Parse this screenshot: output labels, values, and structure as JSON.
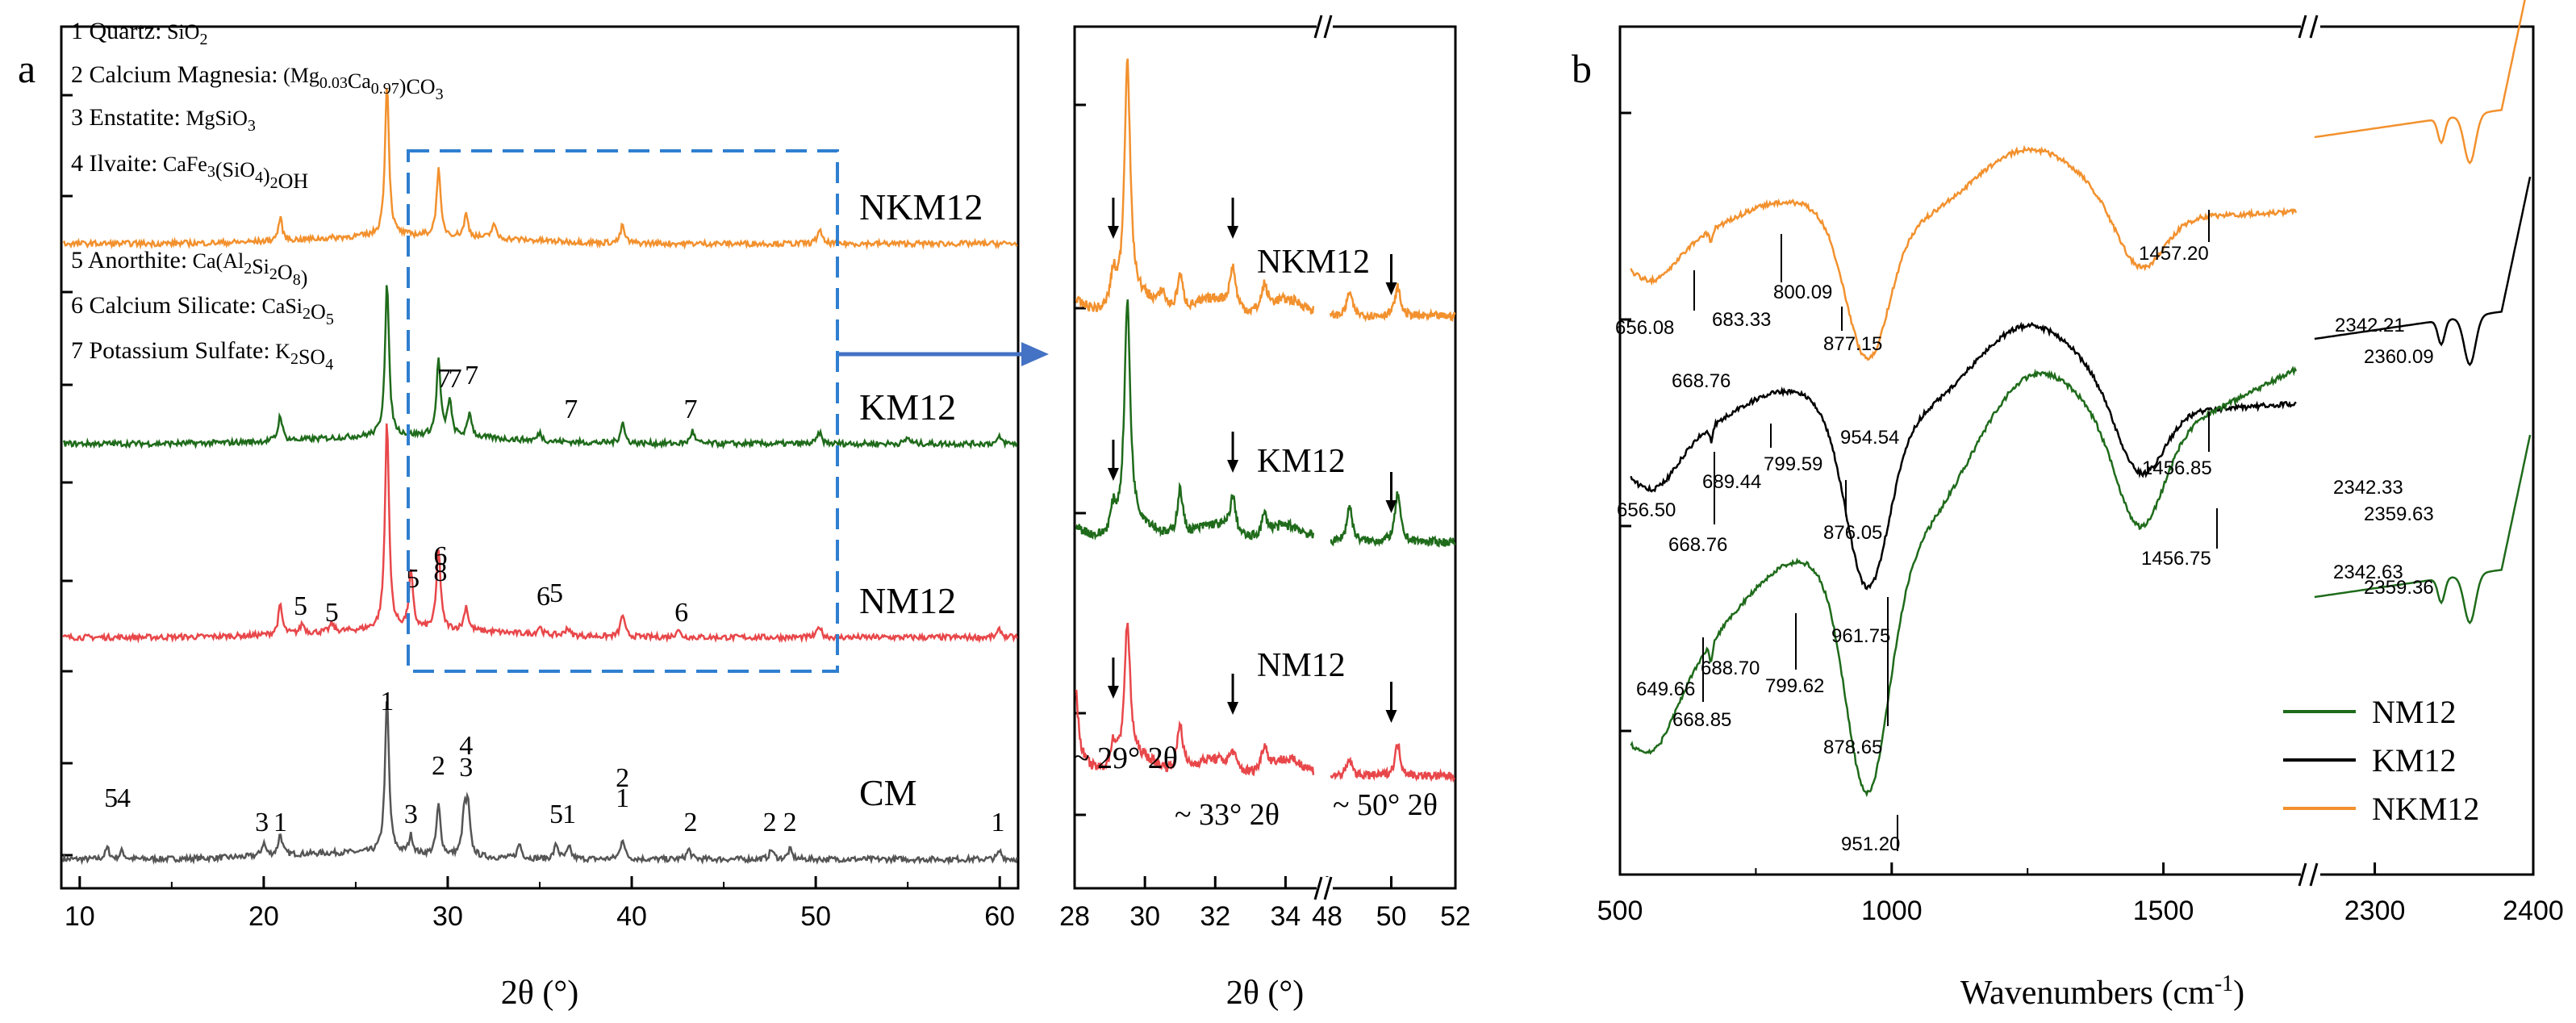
{
  "figure": {
    "label_a": "a",
    "label_b": "b"
  },
  "colors": {
    "CM": "#555555",
    "NM12": "#e8474a",
    "KM12": "#1f6b1b",
    "NKM12": "#f2912e",
    "KM12_ftir": "#000000",
    "zoom_box": "#2f7fd0",
    "arrow": "#4472c4"
  },
  "chart_data": [
    {
      "id": "xrd",
      "type": "line",
      "title": "",
      "xlabel": "2θ (°)",
      "ylabel": "",
      "xlim": [
        9,
        61
      ],
      "xticks": [
        10,
        20,
        30,
        40,
        50,
        60
      ],
      "series": [
        {
          "name": "CM",
          "label": "CM",
          "peaks": [
            [
              11.5,
              14
            ],
            [
              12.3,
              10
            ],
            [
              20.0,
              16
            ],
            [
              20.9,
              26
            ],
            [
              26.7,
              190
            ],
            [
              28.0,
              22
            ],
            [
              29.5,
              62
            ],
            [
              30.9,
              50
            ],
            [
              31.1,
              58
            ],
            [
              33.9,
              18
            ],
            [
              35.9,
              18
            ],
            [
              36.6,
              14
            ],
            [
              39.5,
              26
            ],
            [
              43.1,
              12
            ],
            [
              47.6,
              12
            ],
            [
              48.6,
              12
            ],
            [
              60.0,
              10
            ]
          ]
        },
        {
          "name": "NM12",
          "label": "NM12",
          "peaks": [
            [
              20.9,
              36
            ],
            [
              22.1,
              12
            ],
            [
              23.7,
              10
            ],
            [
              26.7,
              260
            ],
            [
              28.0,
              70
            ],
            [
              29.5,
              100
            ],
            [
              31.0,
              30
            ],
            [
              35.0,
              10
            ],
            [
              36.5,
              10
            ],
            [
              39.5,
              28
            ],
            [
              42.5,
              10
            ],
            [
              50.2,
              14
            ],
            [
              60.0,
              10
            ]
          ]
        },
        {
          "name": "KM12",
          "label": "KM12",
          "peaks": [
            [
              20.9,
              32
            ],
            [
              26.7,
              190
            ],
            [
              29.5,
              94
            ],
            [
              30.1,
              44
            ],
            [
              31.2,
              30
            ],
            [
              35.0,
              10
            ],
            [
              39.5,
              26
            ],
            [
              43.3,
              16
            ],
            [
              50.2,
              14
            ],
            [
              55,
              8
            ],
            [
              60,
              8
            ]
          ]
        },
        {
          "name": "NKM12",
          "label": "NKM12",
          "peaks": [
            [
              20.9,
              28
            ],
            [
              26.7,
              190
            ],
            [
              29.5,
              82
            ],
            [
              31.0,
              28
            ],
            [
              32.5,
              18
            ],
            [
              39.5,
              22
            ],
            [
              50.2,
              18
            ]
          ]
        }
      ],
      "legend_items": [
        {
          "num": "1",
          "name": "Quartz:",
          "sub_html": "SiO<sub>2</sub>"
        },
        {
          "num": "2",
          "name": "Calcium Magnesia:",
          "sub_html": "(Mg<sub>0.03</sub>Ca<sub>0.97</sub>)CO<sub>3</sub>"
        },
        {
          "num": "3",
          "name": "Enstatite:",
          "sub_html": "MgSiO<sub>3</sub>"
        },
        {
          "num": "4",
          "name": "Ilvaite:",
          "sub_html": "CaFe<sub>3</sub>(SiO<sub>4</sub>)<sub>2</sub>OH"
        },
        {
          "num": "5",
          "name": "Anorthite:",
          "sub_html": "Ca(Al<sub>2</sub>Si<sub>2</sub>O<sub>8</sub>)"
        },
        {
          "num": "6",
          "name": "Calcium Silicate:",
          "sub_html": "CaSi<sub>2</sub>O<sub>5</sub>"
        },
        {
          "num": "7",
          "name": "Potassium Sulfate:",
          "sub_html": "K<sub>2</sub>SO<sub>4</sub>"
        }
      ],
      "annotations": {
        "CM": [
          [
            "5",
            11.7
          ],
          [
            "4",
            12.4
          ],
          [
            "3",
            19.9
          ],
          [
            "1",
            20.9
          ],
          [
            "1",
            26.7
          ],
          [
            "3",
            28.0
          ],
          [
            "2",
            29.5
          ],
          [
            "4",
            31.0
          ],
          [
            "3",
            31.0
          ],
          [
            "5",
            35.9
          ],
          [
            "1",
            36.6
          ],
          [
            "2",
            39.5
          ],
          [
            "1",
            39.5
          ],
          [
            "2",
            43.2
          ],
          [
            "2",
            47.5
          ],
          [
            "2",
            48.6
          ],
          [
            "1",
            59.9
          ]
        ],
        "NM12": [
          [
            "5",
            22.0
          ],
          [
            "5",
            23.7
          ],
          [
            "5",
            28.1
          ],
          [
            "6",
            29.6
          ],
          [
            "8",
            29.6
          ],
          [
            "6",
            35.2
          ],
          [
            "5",
            35.9
          ],
          [
            "6",
            42.7
          ]
        ],
        "KM12": [
          [
            "7",
            29.8
          ],
          [
            "7",
            30.4
          ],
          [
            "7",
            31.3
          ],
          [
            "7",
            36.7
          ],
          [
            "7",
            43.2
          ]
        ]
      }
    },
    {
      "id": "xrd-zoom",
      "type": "line",
      "xlabel": "2θ (°)",
      "segment1": {
        "xlim": [
          28,
          35
        ],
        "xticks": [
          28,
          30,
          32,
          34
        ]
      },
      "segment2": {
        "xlim": [
          48,
          52
        ],
        "xticks": [
          48,
          50,
          52
        ]
      },
      "series_labels": [
        "NKM12",
        "KM12",
        "NM12"
      ],
      "notes": [
        "~ 29° 2θ",
        "~ 33° 2θ",
        "~ 50° 2θ"
      ]
    },
    {
      "id": "ftir",
      "type": "line",
      "xlabel": "Wavenumbers (cm⁻¹)",
      "xlabel_text": "Wavenumbers (cm",
      "xlabel_sup": "-1",
      "xlabel_close": ")",
      "segment1": {
        "xlim": [
          500,
          1750
        ],
        "xticks": [
          500,
          1000,
          1500
        ]
      },
      "segment2": {
        "xlim": [
          2260,
          2400
        ],
        "xticks": [
          2300,
          2400
        ]
      },
      "legend": [
        "NM12",
        "KM12",
        "NKM12"
      ],
      "peak_labels": {
        "NKM12": [
          "656.08",
          "683.33",
          "668.76",
          "800.09",
          "877.15",
          "954.54",
          "1457.20",
          "2342.21",
          "2360.09"
        ],
        "KM12": [
          "656.50",
          "689.44",
          "668.76",
          "799.59",
          "876.05",
          "961.75",
          "1456.85",
          "2342.33",
          "2359.63"
        ],
        "NM12": [
          "649.66",
          "688.70",
          "668.85",
          "799.62",
          "878.65",
          "951.20",
          "1456.75",
          "2342.63",
          "2359.36"
        ]
      }
    }
  ]
}
